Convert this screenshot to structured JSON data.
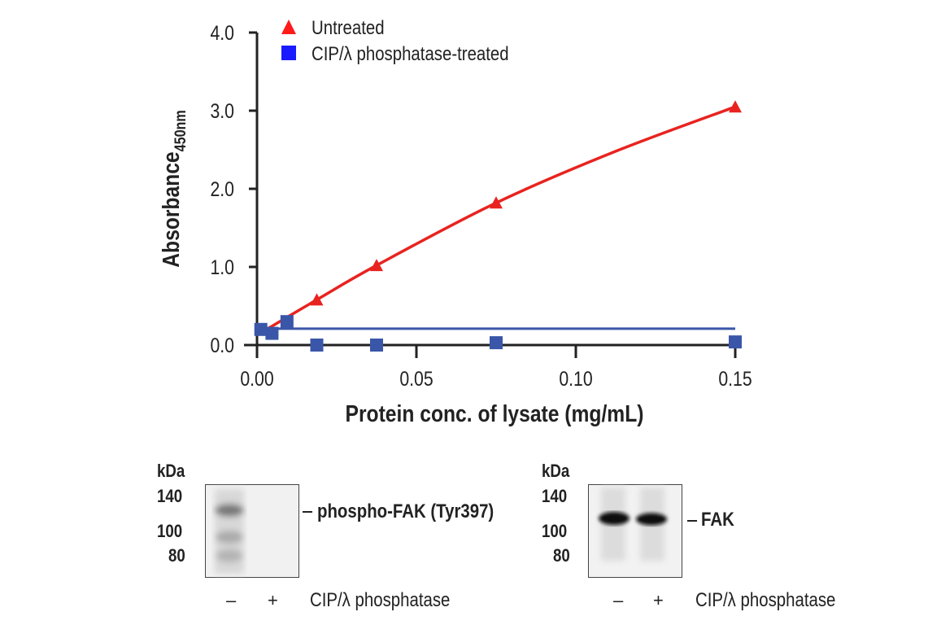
{
  "chart_data": {
    "type": "scatter",
    "xlabel": "Protein conc. of lysate (mg/mL)",
    "ylabel": "Absorbance",
    "ylabel_subscript": "450nm",
    "xlim": [
      0,
      0.15
    ],
    "ylim": [
      0,
      4.0
    ],
    "x_ticks": [
      0.0,
      0.05,
      0.1,
      0.15
    ],
    "x_tick_labels": [
      "0.00",
      "0.05",
      "0.10",
      "0.15"
    ],
    "y_ticks": [
      0.0,
      1.0,
      2.0,
      3.0,
      4.0
    ],
    "y_tick_labels": [
      "0.0",
      "1.0",
      "2.0",
      "3.0",
      "4.0"
    ],
    "grid": false,
    "legend_position": "top-left",
    "series": [
      {
        "name": "Untreated",
        "marker": "triangle",
        "color": "#e8231f",
        "points": [
          [
            0.01875,
            0.58
          ],
          [
            0.0375,
            1.02
          ],
          [
            0.075,
            1.82
          ],
          [
            0.15,
            3.05
          ]
        ],
        "fit": [
          [
            0.003,
            0.2
          ],
          [
            0.01875,
            0.58
          ],
          [
            0.0375,
            1.02
          ],
          [
            0.075,
            1.82
          ],
          [
            0.1125,
            2.48
          ],
          [
            0.15,
            3.05
          ]
        ]
      },
      {
        "name": "CIP/λ phosphatase-treated",
        "marker": "square",
        "color": "#3a56a8",
        "legend_color": "#1a1aff",
        "points": [
          [
            0.0012,
            0.2
          ],
          [
            0.0047,
            0.15
          ],
          [
            0.0094,
            0.3
          ],
          [
            0.01875,
            0.0
          ],
          [
            0.0375,
            0.0
          ],
          [
            0.075,
            0.03
          ],
          [
            0.15,
            0.04
          ]
        ],
        "fit": [
          [
            0.0,
            0.21
          ],
          [
            0.15,
            0.21
          ]
        ]
      }
    ]
  },
  "blots": [
    {
      "kda_label": "kDa",
      "markers": [
        "140",
        "100",
        "80"
      ],
      "band_label": "phospho-FAK (Tyr397)",
      "lanes": [
        "–",
        "+"
      ],
      "lane_caption": "CIP/λ phosphatase"
    },
    {
      "kda_label": "kDa",
      "markers": [
        "140",
        "100",
        "80"
      ],
      "band_label": "FAK",
      "lanes": [
        "–",
        "+"
      ],
      "lane_caption": "CIP/λ phosphatase"
    }
  ]
}
